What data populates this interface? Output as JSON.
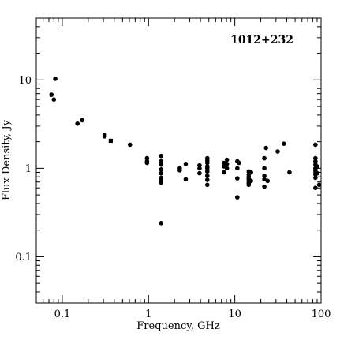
{
  "chart_data": {
    "type": "scatter",
    "title": "1012+232",
    "xlabel": "Frequency, GHz",
    "ylabel": "Flux Density, Jy",
    "x_scale": "log",
    "y_scale": "log",
    "xlim": [
      0.05,
      100
    ],
    "ylim": [
      0.03,
      50
    ],
    "x_ticks": [
      {
        "value": 0.1,
        "label": "0.1"
      },
      {
        "value": 1,
        "label": "1"
      },
      {
        "value": 10,
        "label": "10"
      },
      {
        "value": 100,
        "label": "100"
      }
    ],
    "y_ticks": [
      {
        "value": 0.1,
        "label": "0.1"
      },
      {
        "value": 1,
        "label": "1"
      },
      {
        "value": 10,
        "label": "10"
      }
    ],
    "grid": false,
    "legend": "none",
    "marker_color": "#000000",
    "series": [
      {
        "marker": "circle",
        "points": [
          [
            0.075,
            6.8
          ],
          [
            0.08,
            6.0
          ],
          [
            0.083,
            10.3
          ],
          [
            0.15,
            3.2
          ],
          [
            0.17,
            3.5
          ],
          [
            0.31,
            2.3
          ],
          [
            0.31,
            2.4
          ],
          [
            0.61,
            1.85
          ],
          [
            0.96,
            1.3
          ],
          [
            0.96,
            1.2
          ],
          [
            0.96,
            1.15
          ],
          [
            1.4,
            1.38
          ],
          [
            1.4,
            1.2
          ],
          [
            1.4,
            1.1
          ],
          [
            1.4,
            0.97
          ],
          [
            1.4,
            0.88
          ],
          [
            1.4,
            0.78
          ],
          [
            1.4,
            0.72
          ],
          [
            1.4,
            0.69
          ],
          [
            1.4,
            0.24
          ],
          [
            2.3,
            1.0
          ],
          [
            2.3,
            0.95
          ],
          [
            2.7,
            1.12
          ],
          [
            2.7,
            0.75
          ],
          [
            3.9,
            1.08
          ],
          [
            3.9,
            1.0
          ],
          [
            3.9,
            0.88
          ],
          [
            4.8,
            1.3
          ],
          [
            4.8,
            1.22
          ],
          [
            4.8,
            1.15
          ],
          [
            4.8,
            1.05
          ],
          [
            4.8,
            1.0
          ],
          [
            4.8,
            0.92
          ],
          [
            4.8,
            0.82
          ],
          [
            4.8,
            0.74
          ],
          [
            4.8,
            0.65
          ],
          [
            7.5,
            1.15
          ],
          [
            7.5,
            1.05
          ],
          [
            7.5,
            0.9
          ],
          [
            8.1,
            1.25
          ],
          [
            8.1,
            1.12
          ],
          [
            8.1,
            1.0
          ],
          [
            10.7,
            1.2
          ],
          [
            10.7,
            1.0
          ],
          [
            10.7,
            0.77
          ],
          [
            10.7,
            0.47
          ],
          [
            11.2,
            1.15
          ],
          [
            14.5,
            0.92
          ],
          [
            14.5,
            0.85
          ],
          [
            14.5,
            0.8
          ],
          [
            14.5,
            0.76
          ],
          [
            14.5,
            0.72
          ],
          [
            14.5,
            0.68
          ],
          [
            14.5,
            0.65
          ],
          [
            15.4,
            0.9
          ],
          [
            15.4,
            0.72
          ],
          [
            22,
            1.3
          ],
          [
            22,
            1.0
          ],
          [
            22,
            0.82
          ],
          [
            22,
            0.75
          ],
          [
            22,
            0.62
          ],
          [
            23,
            1.7
          ],
          [
            24,
            0.72
          ],
          [
            31.4,
            1.55
          ],
          [
            37,
            1.9
          ],
          [
            43,
            0.9
          ],
          [
            86,
            1.85
          ],
          [
            86,
            1.3
          ],
          [
            86,
            1.2
          ],
          [
            86,
            1.1
          ],
          [
            86,
            1.0
          ],
          [
            86,
            0.95
          ],
          [
            86,
            0.9
          ],
          [
            86,
            0.85
          ],
          [
            86,
            0.78
          ],
          [
            86,
            0.6
          ],
          [
            90,
            1.05
          ],
          [
            90,
            0.88
          ],
          [
            95,
            0.65
          ]
        ]
      },
      {
        "marker": "square",
        "points": [
          [
            0.365,
            2.05
          ]
        ]
      }
    ]
  }
}
